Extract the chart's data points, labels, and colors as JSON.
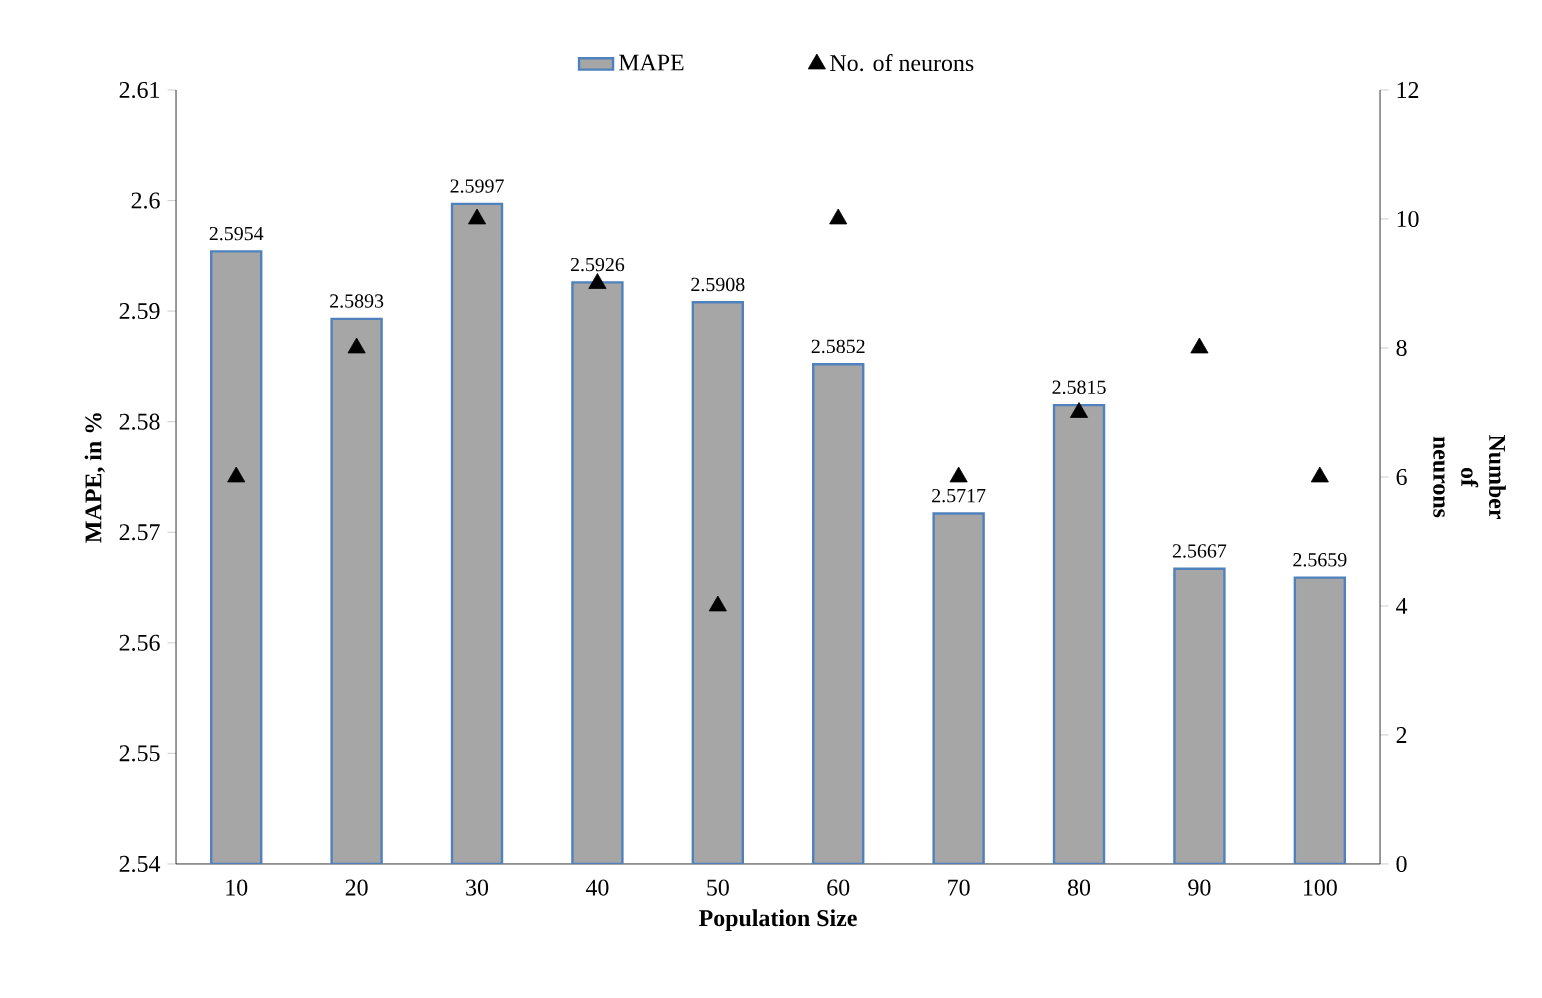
{
  "chart_data": {
    "type": "bar",
    "xlabel": "Population Size",
    "ylabel": "MAPE, in %",
    "y2label": "Number of neurons",
    "categories": [
      "10",
      "20",
      "30",
      "40",
      "50",
      "60",
      "70",
      "80",
      "90",
      "100"
    ],
    "series": [
      {
        "name": "MAPE",
        "color": "#a6a6a6",
        "values": [
          2.5954,
          2.5893,
          2.5997,
          2.5926,
          2.5908,
          2.5852,
          2.5717,
          2.5815,
          2.5667,
          2.5659
        ],
        "value_labels": [
          "2.5954",
          "2.5893",
          "2.5997",
          "2.5926",
          "2.5908",
          "2.5852",
          "2.5717",
          "2.5815",
          "2.5667",
          "2.5659"
        ]
      },
      {
        "name": "No. of neurons",
        "type": "scatter",
        "axis": "y2",
        "color": "#000000",
        "marker": "triangle",
        "values": [
          6,
          8,
          10,
          9,
          4,
          10,
          6,
          7,
          8,
          6
        ]
      }
    ],
    "ylim": [
      2.54,
      2.61
    ],
    "yticks": [
      2.54,
      2.55,
      2.56,
      2.57,
      2.58,
      2.59,
      2.6,
      2.61
    ],
    "y2lim": [
      0,
      12
    ],
    "y2ticks": [
      0,
      2,
      4,
      6,
      8,
      10,
      12
    ],
    "legend": "top"
  }
}
